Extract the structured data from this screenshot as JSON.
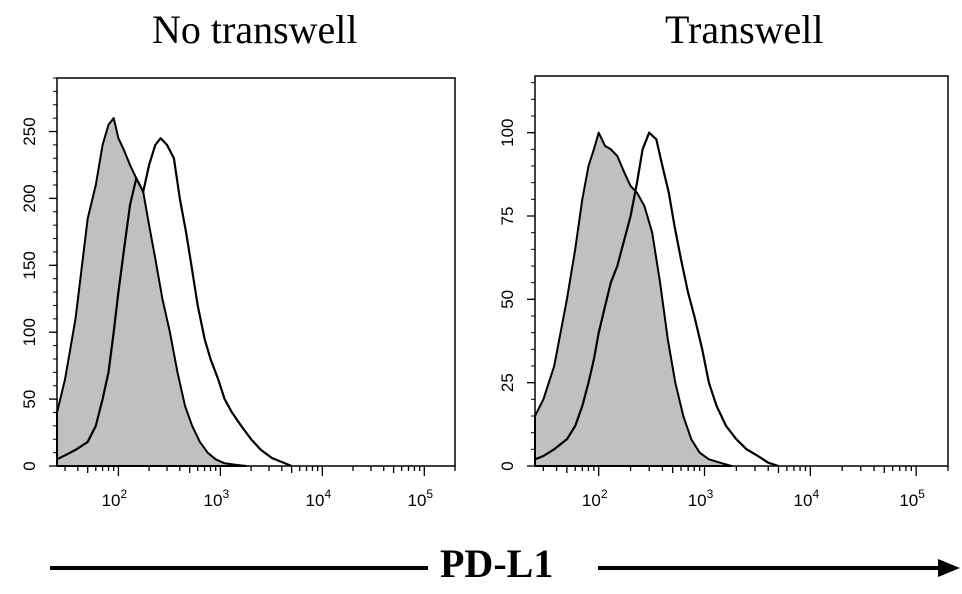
{
  "chart_data": [
    {
      "type": "area",
      "title": "No transwell",
      "xlabel": "PD-L1",
      "x_scale": "log",
      "xlim": [
        25,
        200000
      ],
      "ylim": [
        0,
        290
      ],
      "x_ticks": [
        "10^2",
        "10^3",
        "10^4",
        "10^5"
      ],
      "y_ticks": [
        0,
        50,
        100,
        150,
        200,
        250
      ],
      "series": [
        {
          "role": "shaded",
          "fill": "#c0c0c0",
          "x": [
            25,
            30,
            38,
            50,
            60,
            70,
            80,
            90,
            100,
            115,
            130,
            150,
            175,
            200,
            230,
            270,
            320,
            380,
            450,
            530,
            630,
            750,
            900,
            1100,
            1400,
            1800
          ],
          "y": [
            40,
            65,
            110,
            185,
            210,
            240,
            255,
            260,
            245,
            235,
            225,
            215,
            205,
            180,
            155,
            125,
            100,
            70,
            45,
            30,
            18,
            10,
            5,
            2,
            1,
            0
          ]
        },
        {
          "role": "outline",
          "fill": "none",
          "x": [
            25,
            30,
            38,
            50,
            60,
            70,
            80,
            90,
            100,
            115,
            130,
            150,
            175,
            200,
            230,
            260,
            300,
            350,
            400,
            460,
            520,
            600,
            700,
            800,
            950,
            1100,
            1300,
            1600,
            2000,
            2500,
            3200,
            4000,
            5000
          ],
          "y": [
            5,
            8,
            12,
            18,
            30,
            50,
            70,
            100,
            130,
            165,
            195,
            215,
            205,
            225,
            240,
            245,
            240,
            230,
            200,
            175,
            150,
            120,
            95,
            80,
            65,
            50,
            40,
            30,
            20,
            12,
            6,
            3,
            0
          ]
        }
      ]
    },
    {
      "type": "area",
      "title": "Transwell",
      "xlabel": "PD-L1",
      "x_scale": "log",
      "xlim": [
        25,
        200000
      ],
      "ylim": [
        0,
        117
      ],
      "x_ticks": [
        "10^2",
        "10^3",
        "10^4",
        "10^5"
      ],
      "y_ticks": [
        0,
        25,
        50,
        75,
        100
      ],
      "series": [
        {
          "role": "shaded",
          "fill": "#c0c0c0",
          "x": [
            25,
            30,
            38,
            50,
            60,
            70,
            80,
            90,
            100,
            115,
            130,
            150,
            175,
            200,
            230,
            270,
            320,
            380,
            450,
            530,
            630,
            750,
            900,
            1100,
            1400,
            1800
          ],
          "y": [
            15,
            20,
            30,
            50,
            65,
            80,
            90,
            95,
            100,
            96,
            95,
            93,
            88,
            84,
            82,
            78,
            70,
            55,
            38,
            25,
            15,
            8,
            4,
            2,
            1,
            0
          ]
        },
        {
          "role": "outline",
          "fill": "none",
          "x": [
            25,
            30,
            38,
            50,
            60,
            70,
            80,
            90,
            100,
            115,
            130,
            150,
            175,
            200,
            230,
            260,
            300,
            350,
            400,
            460,
            520,
            600,
            700,
            800,
            950,
            1100,
            1300,
            1600,
            2000,
            2500,
            3200,
            4000,
            5000
          ],
          "y": [
            2,
            3,
            5,
            8,
            12,
            18,
            25,
            32,
            40,
            48,
            55,
            60,
            68,
            75,
            85,
            95,
            100,
            98,
            90,
            82,
            72,
            62,
            52,
            45,
            35,
            25,
            18,
            12,
            8,
            5,
            3,
            1,
            0
          ]
        }
      ]
    }
  ]
}
